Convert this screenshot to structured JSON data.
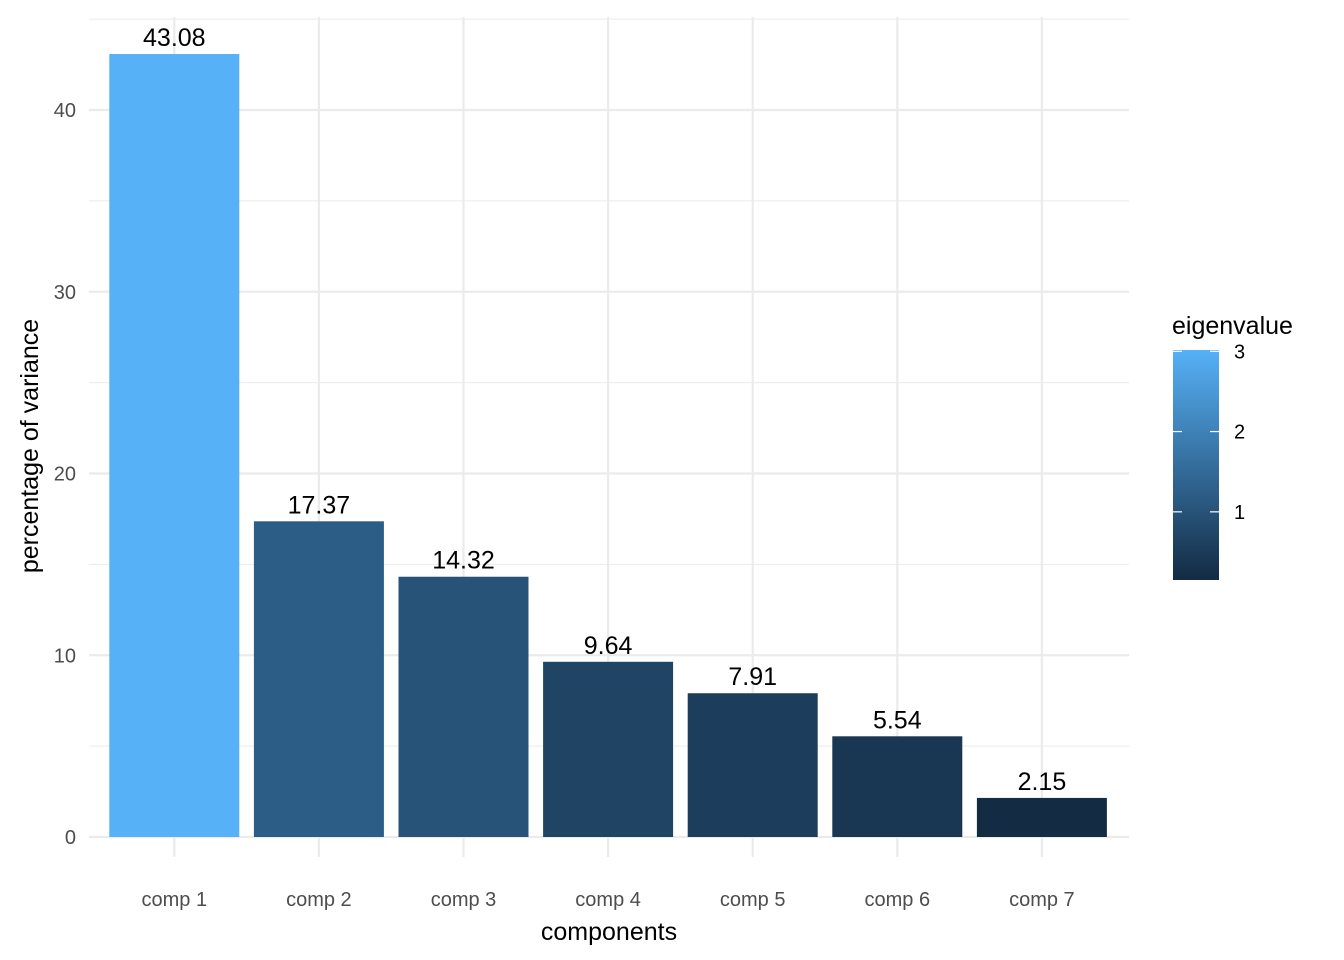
{
  "chart_data": {
    "type": "bar",
    "categories": [
      "comp 1",
      "comp 2",
      "comp 3",
      "comp 4",
      "comp 5",
      "comp 6",
      "comp 7"
    ],
    "values": [
      43.08,
      17.37,
      14.32,
      9.64,
      7.91,
      5.54,
      2.15
    ],
    "data_labels": [
      "43.08",
      "17.37",
      "14.32",
      "9.64",
      "7.91",
      "5.54",
      "2.15"
    ],
    "eigenvalues": [
      3.016,
      1.216,
      1.002,
      0.675,
      0.554,
      0.388,
      0.151
    ],
    "xlabel": "components",
    "ylabel": "percentage of variance",
    "ylim": [
      0,
      45
    ],
    "y_ticks": [
      0,
      10,
      20,
      30,
      40
    ],
    "y_tick_labels": [
      "0",
      "10",
      "20",
      "30",
      "40"
    ],
    "grid": true,
    "legend": {
      "title": "eigenvalue",
      "placement": "right",
      "range": [
        0.151,
        3.016
      ],
      "ticks": [
        1,
        2,
        3
      ],
      "tick_labels": [
        "1",
        "2",
        "3"
      ],
      "color_low": "#132B43",
      "color_high": "#56B1F7"
    }
  }
}
